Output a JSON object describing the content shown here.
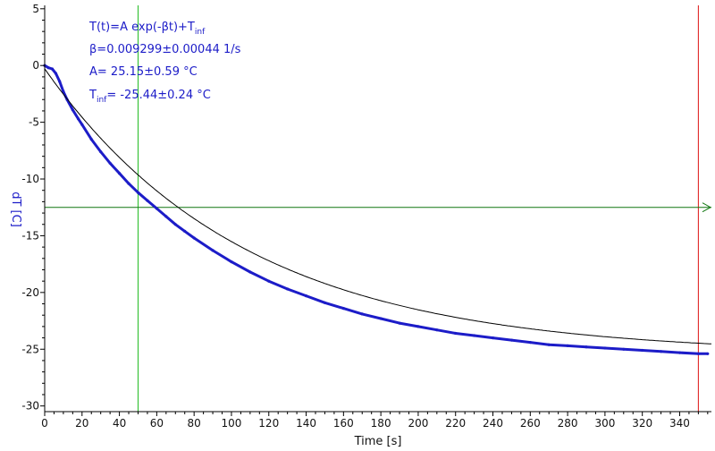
{
  "chart_data": {
    "type": "line",
    "title": "",
    "xlabel": "Time [s]",
    "ylabel": "dT [C]",
    "xlim": [
      0,
      357
    ],
    "ylim": [
      -30.5,
      5.3
    ],
    "x_ticks": [
      0,
      20,
      40,
      60,
      80,
      100,
      120,
      140,
      160,
      180,
      200,
      220,
      240,
      260,
      280,
      300,
      320,
      340
    ],
    "y_ticks": [
      5,
      0,
      -5,
      -10,
      -15,
      -20,
      -25,
      -30
    ],
    "grid": false,
    "legend": "none",
    "series": [
      {
        "kind": "measured",
        "color": "#1c1cc8",
        "x": [
          0,
          2,
          4,
          6,
          8,
          10,
          12,
          15,
          18,
          20,
          25,
          30,
          35,
          40,
          45,
          50,
          55,
          60,
          65,
          70,
          75,
          80,
          90,
          100,
          110,
          120,
          130,
          140,
          150,
          160,
          170,
          180,
          190,
          200,
          210,
          220,
          230,
          240,
          250,
          260,
          270,
          280,
          290,
          300,
          310,
          320,
          330,
          340,
          350,
          355
        ],
        "y": [
          0,
          -0.2,
          -0.3,
          -0.7,
          -1.4,
          -2.3,
          -3.0,
          -3.9,
          -4.7,
          -5.2,
          -6.5,
          -7.6,
          -8.6,
          -9.5,
          -10.4,
          -11.2,
          -11.9,
          -12.6,
          -13.3,
          -14.0,
          -14.6,
          -15.2,
          -16.3,
          -17.3,
          -18.2,
          -19.0,
          -19.7,
          -20.3,
          -20.9,
          -21.4,
          -21.9,
          -22.3,
          -22.7,
          -23.0,
          -23.3,
          -23.6,
          -23.8,
          -24.0,
          -24.2,
          -24.4,
          -24.6,
          -24.7,
          -24.8,
          -24.9,
          -25.0,
          -25.1,
          -25.2,
          -25.3,
          -25.4,
          -25.4
        ]
      },
      {
        "kind": "fit",
        "color": "#000000",
        "A": 25.15,
        "beta": 0.009299,
        "T_inf": -25.44,
        "x_range": [
          0,
          357
        ]
      }
    ],
    "cursors": {
      "vertical_green_x": 50,
      "vertical_red_x": 350,
      "horizontal_green_y": -12.5,
      "vertical_green_color": "#22bb22",
      "vertical_red_color": "#dd1111",
      "horizontal_green_color": "#117711"
    },
    "annotations": {
      "model_main": "T(t)=A exp(-βt)+T",
      "model_sub": "inf",
      "beta_line": "β=0.009299±0.00044 1/s",
      "a_line": "A= 25.15±0.59 °C",
      "tinf_main": "T",
      "tinf_sub": "inf",
      "tinf_value": "= -25.44±0.24 °C"
    }
  }
}
